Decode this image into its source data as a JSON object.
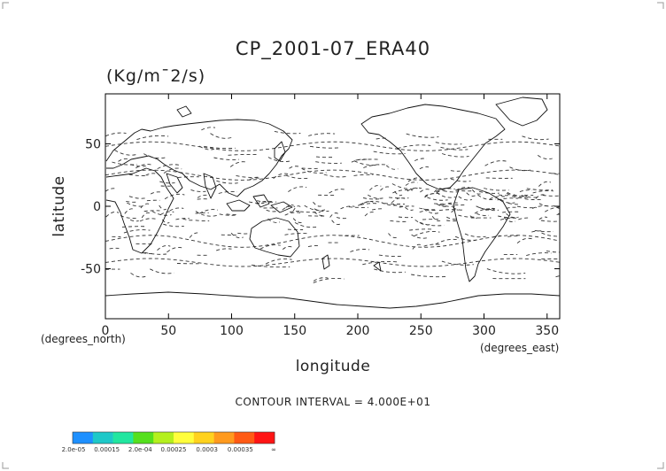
{
  "chart_data": {
    "type": "contour_map",
    "title": "CP_2001-07_ERA40",
    "units": "(Kg/m¯2/s)",
    "xlabel": "longitude",
    "ylabel": "latitude",
    "x_unit_note": "(degrees_north)",
    "x_unit_note_right": "(degrees_east)",
    "xlim": [
      0,
      360
    ],
    "ylim": [
      -90,
      90
    ],
    "x_ticks": [
      0,
      50,
      100,
      150,
      200,
      250,
      300,
      350
    ],
    "y_ticks": [
      -50,
      0,
      50
    ],
    "contour_interval_text": "CONTOUR INTERVAL = 4.000E+01",
    "colorbar": {
      "colors": [
        "#1e90ff",
        "#1ec8c8",
        "#22e6a0",
        "#55e01e",
        "#b4f01e",
        "#fffe3c",
        "#ffd21e",
        "#ff9a1e",
        "#ff5a14",
        "#ff1414"
      ],
      "labels": [
        "2.0e-05",
        "0.00015",
        "2.0e-04",
        "0.00025",
        "0.0003",
        "0.00035",
        "∞"
      ]
    }
  }
}
